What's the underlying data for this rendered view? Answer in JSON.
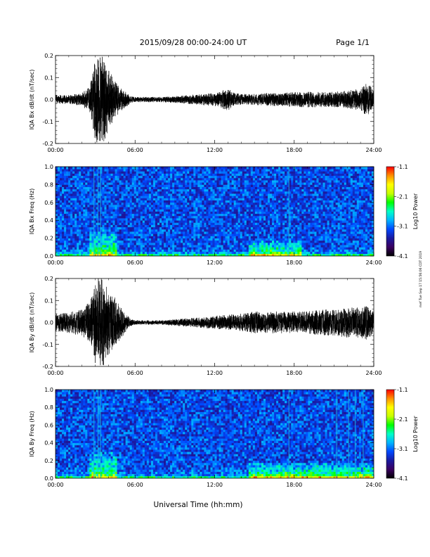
{
  "header": {
    "title": "2015/09/28  00:00-24:00 UT",
    "page": "Page 1/1"
  },
  "side_note": "mef Tue Sep 17 15:56:06 CDT 2019",
  "colors": {
    "trace": "#000000",
    "colorbar_stops": [
      "#000000",
      "#3a0060",
      "#1a1aa0",
      "#0048ff",
      "#00b4ff",
      "#00ffc8",
      "#00ff00",
      "#c8ff00",
      "#ffff00",
      "#ff9000",
      "#ff0000"
    ]
  },
  "chart_data": [
    {
      "type": "line",
      "ylabel": "IQA Bx dB/dt (nT/sec)",
      "x_unit": "hours UT",
      "xlim": [
        0,
        24
      ],
      "ylim": [
        -0.2,
        0.2
      ],
      "x_ticks": [
        "00:00",
        "06:00",
        "12:00",
        "18:00",
        "24:00"
      ],
      "y_ticks": [
        "-0.2",
        "-0.1",
        "0.0",
        "0.1",
        "0.2"
      ],
      "envelope": {
        "x": [
          0,
          1,
          2,
          2.6,
          3.0,
          3.3,
          3.6,
          4.0,
          4.4,
          4.8,
          5.2,
          5.6,
          6,
          7,
          8,
          9,
          10,
          11,
          12,
          12.5,
          13,
          13.5,
          14,
          15,
          16,
          17,
          18,
          19,
          20,
          21,
          22,
          23,
          23.5,
          24
        ],
        "amp": [
          0.02,
          0.02,
          0.03,
          0.06,
          0.2,
          0.2,
          0.2,
          0.14,
          0.09,
          0.06,
          0.04,
          0.02,
          0.012,
          0.012,
          0.012,
          0.015,
          0.02,
          0.025,
          0.03,
          0.04,
          0.05,
          0.03,
          0.025,
          0.025,
          0.03,
          0.03,
          0.035,
          0.035,
          0.035,
          0.035,
          0.04,
          0.05,
          0.08,
          0.04
        ]
      }
    },
    {
      "type": "heatmap",
      "ylabel": "IQA Bx Freq (Hz)",
      "x_unit": "hours UT",
      "xlim": [
        0,
        24
      ],
      "ylim": [
        0,
        1.0
      ],
      "x_ticks": [
        "00:00",
        "06:00",
        "12:00",
        "18:00",
        "24:00"
      ],
      "y_ticks": [
        "0.0",
        "0.2",
        "0.4",
        "0.6",
        "0.8",
        "1.0"
      ],
      "colorbar_label": "Log10 Power",
      "colorbar_ticks": [
        "-1.1",
        "-2.1",
        "-3.1",
        "-4.1"
      ],
      "colorbar_range": [
        -4.1,
        -1.1
      ],
      "bright_columns": [
        2.9,
        3.2,
        3.4,
        17.6
      ],
      "bursts": [
        {
          "t0": 2.6,
          "t1": 4.6,
          "fmax": 0.3
        },
        {
          "t0": 14.5,
          "t1": 18.5,
          "fmax": 0.18
        }
      ]
    },
    {
      "type": "line",
      "ylabel": "IQA By dB/dt (nT/sec)",
      "x_unit": "hours UT",
      "xlim": [
        0,
        24
      ],
      "ylim": [
        -0.2,
        0.2
      ],
      "x_ticks": [
        "00:00",
        "06:00",
        "12:00",
        "18:00",
        "24:00"
      ],
      "y_ticks": [
        "-0.2",
        "-0.1",
        "0.0",
        "0.1",
        "0.2"
      ],
      "envelope": {
        "x": [
          0,
          1,
          2,
          2.6,
          3.0,
          3.3,
          3.6,
          4.0,
          4.4,
          4.8,
          5.2,
          5.6,
          6,
          7,
          8,
          9,
          10,
          11,
          12,
          13,
          14,
          15,
          16,
          17,
          18,
          19,
          20,
          21,
          22,
          23,
          23.5,
          24
        ],
        "amp": [
          0.04,
          0.05,
          0.06,
          0.1,
          0.2,
          0.2,
          0.2,
          0.15,
          0.12,
          0.09,
          0.05,
          0.02,
          0.01,
          0.01,
          0.01,
          0.015,
          0.02,
          0.025,
          0.03,
          0.035,
          0.04,
          0.05,
          0.05,
          0.05,
          0.05,
          0.05,
          0.06,
          0.06,
          0.07,
          0.07,
          0.08,
          0.05
        ]
      }
    },
    {
      "type": "heatmap",
      "ylabel": "IQA By Freq (Hz)",
      "x_unit": "hours UT",
      "xlim": [
        0,
        24
      ],
      "ylim": [
        0,
        1.0
      ],
      "x_ticks": [
        "00:00",
        "06:00",
        "12:00",
        "18:00",
        "24:00"
      ],
      "y_ticks": [
        "0.0",
        "0.2",
        "0.4",
        "0.6",
        "0.8",
        "1.0"
      ],
      "colorbar_label": "Log10 Power",
      "colorbar_ticks": [
        "-1.1",
        "-2.1",
        "-3.1",
        "-4.1"
      ],
      "colorbar_range": [
        -4.1,
        -1.1
      ],
      "bright_columns": [
        2.9,
        3.2,
        3.4,
        17.6,
        21.2,
        22.1,
        22.6,
        23.2
      ],
      "bursts": [
        {
          "t0": 2.6,
          "t1": 4.6,
          "fmax": 0.3
        },
        {
          "t0": 14.5,
          "t1": 24,
          "fmax": 0.18
        }
      ]
    }
  ],
  "xlabel": "Universal Time (hh:mm)"
}
